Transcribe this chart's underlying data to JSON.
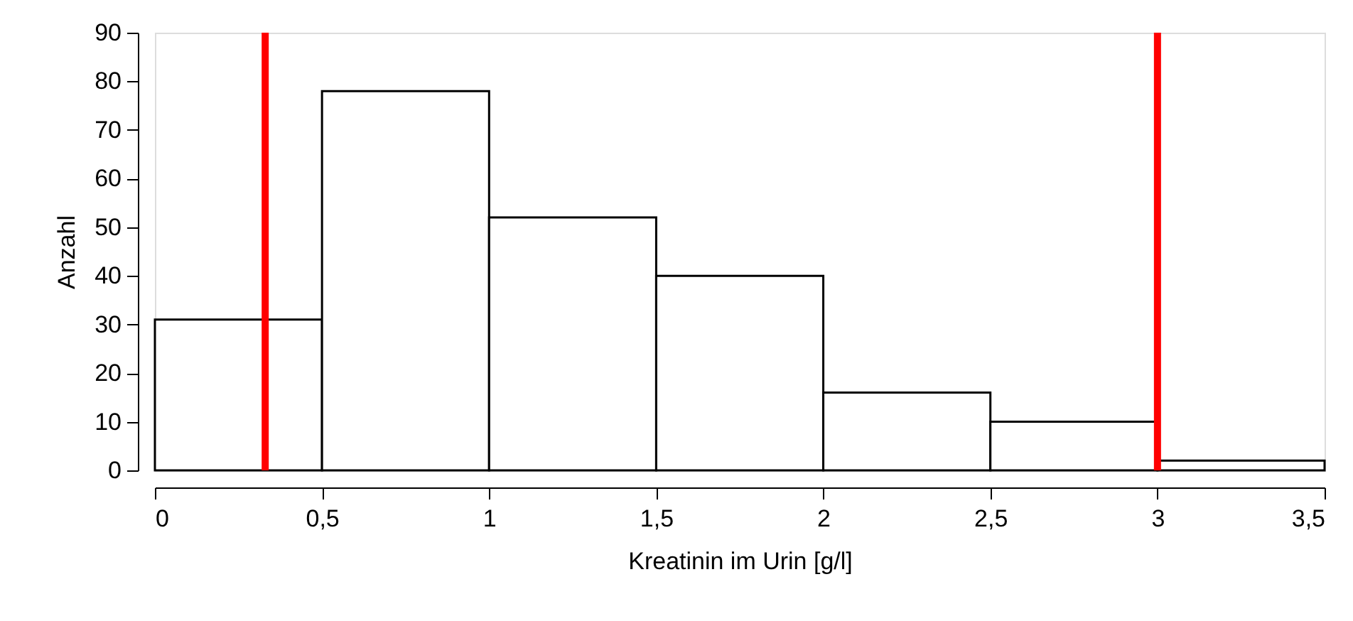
{
  "chart_data": {
    "type": "histogram",
    "xlabel": "Kreatinin im Urin [g/l]",
    "ylabel": "Anzahl",
    "bins": [
      0,
      0.5,
      1,
      1.5,
      2,
      2.5,
      3,
      3.5
    ],
    "values": [
      31,
      78,
      52,
      40,
      16,
      10,
      2
    ],
    "color": "#ffffff",
    "xlim": [
      0,
      3.5
    ],
    "xticks": [
      0,
      {
        "value": 0.5,
        "label": "0,5"
      },
      1,
      {
        "value": 1.5,
        "label": "1,5"
      },
      2,
      {
        "value": 2.5,
        "label": "2,5"
      },
      3,
      {
        "value": 3.5,
        "label": "3,5"
      }
    ],
    "ylim": [
      0,
      90
    ],
    "yticks": [
      0,
      10,
      20,
      30,
      40,
      50,
      60,
      70,
      80,
      90
    ],
    "ref_lines": [
      {
        "axis": "x",
        "value": 0.33,
        "color": "#ff0000"
      },
      {
        "axis": "x",
        "value": 3,
        "color": "#ff0000"
      }
    ],
    "grid": false
  }
}
